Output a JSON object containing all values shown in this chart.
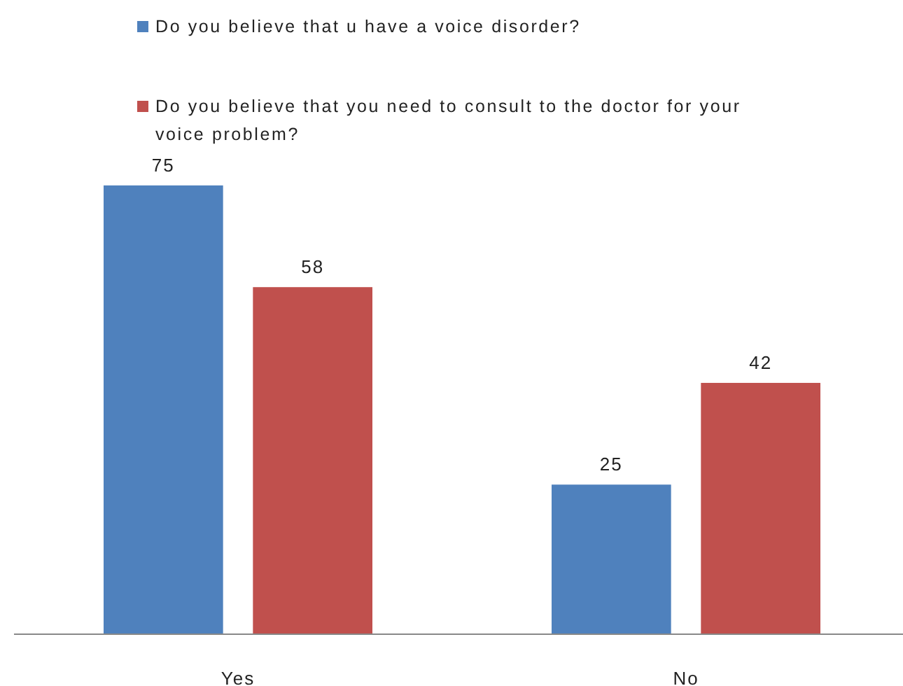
{
  "chart_data": {
    "type": "bar",
    "categories": [
      "Yes",
      "No"
    ],
    "series": [
      {
        "name": "Do you believe that u have a voice disorder?",
        "color": "#4f81bd",
        "values": [
          75,
          25
        ]
      },
      {
        "name": "Do you believe that you need to consult to the doctor for your voice problem?",
        "color": "#c0504d",
        "values": [
          58,
          42
        ]
      }
    ],
    "data_labels": true,
    "legend": "top"
  }
}
